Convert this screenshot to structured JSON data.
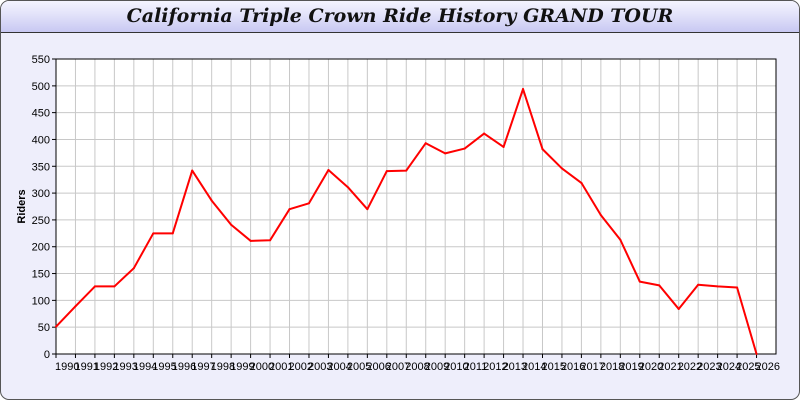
{
  "window": {
    "title": "California Triple Crown Ride History GRAND TOUR"
  },
  "chart_data": {
    "type": "line",
    "title": "California Triple Crown Ride History GRAND TOUR",
    "xlabel": "",
    "ylabel": "Riders",
    "xlim": [
      1990,
      2027
    ],
    "ylim": [
      0,
      550
    ],
    "yticks": [
      0,
      50,
      100,
      150,
      200,
      250,
      300,
      350,
      400,
      450,
      500,
      550
    ],
    "grid": true,
    "line_color": "#ff0000",
    "x": [
      1990,
      1991,
      1992,
      1993,
      1994,
      1995,
      1996,
      1997,
      1998,
      1999,
      2000,
      2001,
      2002,
      2003,
      2004,
      2005,
      2006,
      2007,
      2008,
      2009,
      2010,
      2011,
      2012,
      2013,
      2014,
      2015,
      2016,
      2017,
      2018,
      2019,
      2020,
      2021,
      2022,
      2023,
      2024,
      2025,
      2026
    ],
    "series": [
      {
        "values": [
          51,
          89,
          126,
          126,
          160,
          225,
          225,
          342,
          286,
          241,
          211,
          212,
          270,
          281,
          343,
          311,
          270,
          341,
          342,
          393,
          374,
          383,
          411,
          386,
          494,
          382,
          346,
          319,
          259,
          213,
          135,
          128,
          84,
          129,
          126,
          124,
          0
        ]
      }
    ]
  }
}
